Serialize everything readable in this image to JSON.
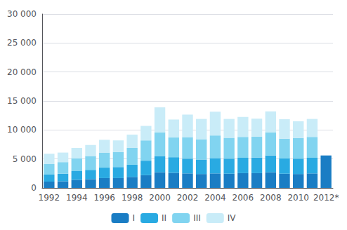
{
  "chart_data": {
    "type": "bar",
    "stacked": true,
    "categories": [
      "1992",
      null,
      "1994",
      null,
      "1996",
      null,
      "1998",
      null,
      "2000",
      null,
      "2002",
      null,
      "2004",
      null,
      "2006",
      null,
      "2008",
      null,
      "2010",
      null,
      "2012*"
    ],
    "series": [
      {
        "name": "I",
        "color": "#1a7dc4",
        "values": [
          1100,
          1150,
          1400,
          1500,
          1700,
          1700,
          1900,
          2200,
          2700,
          2600,
          2500,
          2400,
          2500,
          2450,
          2550,
          2550,
          2700,
          2450,
          2400,
          2500,
          5600
        ]
      },
      {
        "name": "II",
        "color": "#29aae2",
        "values": [
          1200,
          1300,
          1500,
          1600,
          1800,
          1900,
          2100,
          2500,
          2800,
          2700,
          2550,
          2500,
          2650,
          2600,
          2650,
          2700,
          2900,
          2650,
          2650,
          2700,
          0
        ]
      },
      {
        "name": "III",
        "color": "#81d4f0",
        "values": [
          1800,
          2000,
          2200,
          2400,
          2600,
          2600,
          2900,
          3500,
          4100,
          3400,
          3700,
          3500,
          3900,
          3600,
          3600,
          3600,
          4000,
          3400,
          3550,
          3600,
          0
        ]
      },
      {
        "name": "IV",
        "color": "#c9ecf8",
        "values": [
          1800,
          1650,
          1800,
          1900,
          2200,
          2000,
          2300,
          2500,
          4300,
          3100,
          3900,
          3500,
          4100,
          3250,
          3450,
          3100,
          3600,
          3350,
          2900,
          3100,
          0
        ]
      }
    ],
    "ylim": [
      0,
      30000
    ],
    "yticks": [
      0,
      {
        "value": 5000,
        "label": "5 000"
      },
      {
        "value": 10000,
        "label": "10 000"
      },
      {
        "value": 15000,
        "label": "15 000"
      },
      {
        "value": 20000,
        "label": "20 000"
      },
      {
        "value": 25000,
        "label": "25 000"
      },
      {
        "value": 30000,
        "label": "30 000"
      }
    ],
    "grid": true,
    "legend": "bottom"
  }
}
